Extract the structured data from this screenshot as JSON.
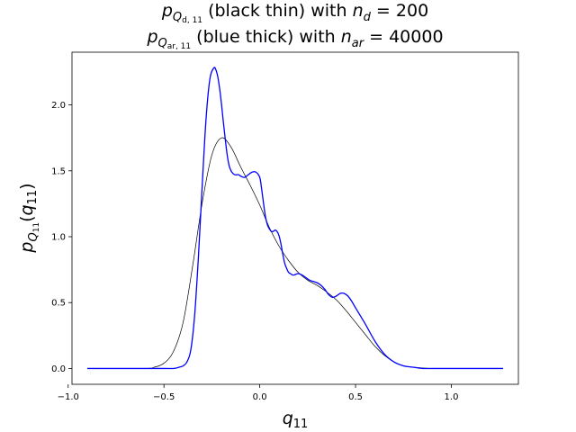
{
  "chart_data": {
    "type": "line",
    "title_line1": {
      "p": "p",
      "p_sub_main": "Q",
      "p_sub_sub": "d, 11",
      "text": " (black thin) with ",
      "n": "n",
      "n_sub": "d",
      "eq": " = 200"
    },
    "title_line2": {
      "p": "p",
      "p_sub_main": "Q",
      "p_sub_sub": "ar, 11",
      "text": " (blue thick) with ",
      "n": "n",
      "n_sub": "ar",
      "eq": " = 40000"
    },
    "xlabel": {
      "base": "q",
      "sub": "11"
    },
    "ylabel": {
      "p": "p",
      "p_sub_main": "Q",
      "p_sub_sub": "11",
      "rest_open": "(",
      "arg_base": "q",
      "arg_sub": "11",
      "rest_close": ")"
    },
    "xlim": [
      -0.98,
      1.35
    ],
    "ylim": [
      -0.12,
      2.4
    ],
    "xticks": [
      -1.0,
      -0.5,
      0.0,
      0.5,
      1.0
    ],
    "xtick_labels": [
      "−1.0",
      "−0.5",
      "0.0",
      "0.5",
      "1.0"
    ],
    "yticks": [
      0.0,
      0.5,
      1.0,
      1.5,
      2.0
    ],
    "ytick_labels": [
      "0.0",
      "0.5",
      "1.0",
      "1.5",
      "2.0"
    ],
    "grid": false,
    "legend": "none",
    "series": [
      {
        "color": "#000000",
        "style": "thin",
        "x": [
          -0.9,
          -0.6,
          -0.55,
          -0.5,
          -0.45,
          -0.4,
          -0.35,
          -0.3,
          -0.25,
          -0.2,
          -0.15,
          -0.1,
          -0.05,
          0.0,
          0.05,
          0.1,
          0.15,
          0.2,
          0.25,
          0.3,
          0.35,
          0.4,
          0.45,
          0.5,
          0.55,
          0.6,
          0.65,
          0.7,
          0.75,
          0.8,
          0.9,
          1.0,
          1.27
        ],
        "y": [
          0.0,
          0.0,
          0.01,
          0.04,
          0.13,
          0.35,
          0.78,
          1.26,
          1.62,
          1.75,
          1.68,
          1.53,
          1.39,
          1.24,
          1.07,
          0.93,
          0.82,
          0.73,
          0.67,
          0.63,
          0.58,
          0.52,
          0.44,
          0.35,
          0.26,
          0.17,
          0.1,
          0.05,
          0.02,
          0.01,
          0.0,
          0.0,
          0.0
        ]
      },
      {
        "color": "#0000ff",
        "style": "thick",
        "x": [
          -0.9,
          -0.5,
          -0.45,
          -0.42,
          -0.4,
          -0.38,
          -0.36,
          -0.34,
          -0.32,
          -0.3,
          -0.28,
          -0.26,
          -0.24,
          -0.23,
          -0.22,
          -0.21,
          -0.2,
          -0.19,
          -0.18,
          -0.17,
          -0.16,
          -0.15,
          -0.14,
          -0.13,
          -0.12,
          -0.11,
          -0.1,
          -0.08,
          -0.06,
          -0.04,
          -0.02,
          0.0,
          0.01,
          0.02,
          0.03,
          0.04,
          0.05,
          0.06,
          0.07,
          0.08,
          0.09,
          0.1,
          0.11,
          0.12,
          0.13,
          0.14,
          0.15,
          0.16,
          0.17,
          0.18,
          0.2,
          0.22,
          0.24,
          0.26,
          0.28,
          0.3,
          0.32,
          0.34,
          0.36,
          0.38,
          0.4,
          0.42,
          0.44,
          0.46,
          0.48,
          0.5,
          0.55,
          0.6,
          0.65,
          0.7,
          0.75,
          0.8,
          0.85,
          0.9,
          1.0,
          1.27
        ],
        "y": [
          0.0,
          0.0,
          0.0,
          0.01,
          0.02,
          0.05,
          0.14,
          0.4,
          0.85,
          1.4,
          1.9,
          2.2,
          2.28,
          2.27,
          2.22,
          2.13,
          2.01,
          1.87,
          1.74,
          1.62,
          1.54,
          1.5,
          1.48,
          1.47,
          1.47,
          1.47,
          1.46,
          1.45,
          1.47,
          1.49,
          1.49,
          1.45,
          1.36,
          1.25,
          1.15,
          1.09,
          1.06,
          1.04,
          1.04,
          1.05,
          1.04,
          1.01,
          0.95,
          0.87,
          0.8,
          0.76,
          0.73,
          0.72,
          0.71,
          0.71,
          0.72,
          0.71,
          0.69,
          0.67,
          0.66,
          0.65,
          0.63,
          0.6,
          0.56,
          0.54,
          0.55,
          0.57,
          0.57,
          0.55,
          0.51,
          0.46,
          0.34,
          0.21,
          0.11,
          0.05,
          0.02,
          0.01,
          0.0,
          0.0,
          0.0,
          0.0
        ]
      }
    ]
  }
}
